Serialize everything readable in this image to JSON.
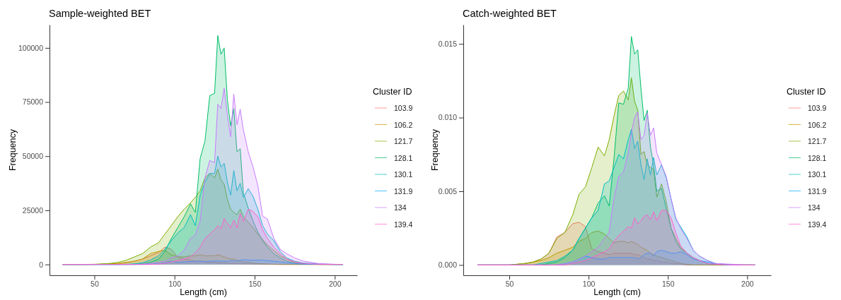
{
  "chart_data": [
    {
      "type": "area",
      "title": "Sample-weighted BET",
      "xlabel": "Length (cm)",
      "ylabel": "Frequency",
      "legend_title": "Cluster ID",
      "legend": "right",
      "grid": false,
      "x": [
        30,
        40,
        50,
        60,
        65,
        70,
        75,
        80,
        85,
        90,
        94,
        98,
        102,
        106,
        110,
        113,
        116,
        119,
        122,
        125,
        127,
        129,
        131,
        133,
        135,
        137,
        139,
        141,
        143,
        146,
        149,
        152,
        155,
        158,
        162,
        166,
        170,
        175,
        180,
        190,
        200,
        205
      ],
      "xlim": [
        22,
        214
      ],
      "xticks": [
        50,
        100,
        150,
        200
      ],
      "ylim": [
        -5000,
        110700
      ],
      "yticks": [
        0,
        25000,
        50000,
        75000,
        100000
      ],
      "series": [
        {
          "name": "103.9",
          "color": "#f8766d",
          "values": [
            0,
            0,
            0,
            200,
            400,
            800,
            1500,
            2500,
            4000,
            5500,
            8000,
            7000,
            3500,
            2500,
            2000,
            1500,
            1500,
            1200,
            1000,
            1000,
            800,
            800,
            700,
            600,
            500,
            500,
            400,
            400,
            300,
            300,
            200,
            200,
            100,
            100,
            0,
            0,
            0,
            0,
            0,
            0,
            0,
            0
          ]
        },
        {
          "name": "106.2",
          "color": "#cd9600",
          "values": [
            0,
            0,
            0,
            300,
            500,
            1000,
            1500,
            2500,
            5000,
            6000,
            6500,
            4500,
            3500,
            3500,
            4000,
            4000,
            4500,
            4000,
            4000,
            4000,
            4500,
            4000,
            3500,
            3000,
            2500,
            2500,
            2000,
            1500,
            1200,
            1000,
            600,
            400,
            300,
            200,
            100,
            0,
            0,
            0,
            0,
            0,
            0,
            0
          ]
        },
        {
          "name": "121.7",
          "color": "#7cae00",
          "values": [
            0,
            0,
            100,
            500,
            1000,
            2000,
            3500,
            5000,
            8000,
            10000,
            14000,
            18000,
            22000,
            25500,
            28500,
            31000,
            34000,
            40000,
            42000,
            40000,
            44000,
            39000,
            37000,
            30000,
            25500,
            24000,
            23000,
            25500,
            22000,
            19500,
            17000,
            14000,
            11500,
            9000,
            6500,
            4000,
            2500,
            1000,
            400,
            100,
            0,
            0
          ]
        },
        {
          "name": "128.1",
          "color": "#00be67",
          "values": [
            0,
            0,
            0,
            0,
            0,
            0,
            100,
            300,
            1000,
            2500,
            6000,
            12000,
            17000,
            22000,
            28000,
            24000,
            49000,
            57000,
            78000,
            79000,
            105700,
            97000,
            100000,
            76000,
            64000,
            72000,
            52000,
            53500,
            33000,
            26000,
            20000,
            15000,
            11000,
            8000,
            5000,
            3000,
            1500,
            600,
            200,
            0,
            0,
            0
          ]
        },
        {
          "name": "130.1",
          "color": "#00bfc4",
          "values": [
            0,
            0,
            0,
            0,
            0,
            100,
            300,
            800,
            2000,
            4000,
            7000,
            11000,
            14500,
            17000,
            23000,
            18000,
            32000,
            38000,
            42000,
            42000,
            50000,
            45000,
            46700,
            38000,
            32000,
            43400,
            34000,
            37500,
            31000,
            35000,
            31500,
            25500,
            18000,
            14000,
            11000,
            6000,
            3000,
            1500,
            700,
            200,
            0,
            0
          ]
        },
        {
          "name": "131.9",
          "color": "#00a9ff",
          "values": [
            0,
            0,
            0,
            0,
            0,
            0,
            0,
            0,
            100,
            300,
            800,
            1500,
            1000,
            1200,
            1300,
            1500,
            1500,
            1400,
            1500,
            1600,
            1600,
            1500,
            1500,
            1400,
            1800,
            1700,
            1500,
            2000,
            2200,
            2000,
            2000,
            2000,
            2000,
            1800,
            1500,
            1200,
            800,
            400,
            200,
            50,
            0,
            0
          ]
        },
        {
          "name": "134",
          "color": "#c77cff",
          "values": [
            0,
            0,
            0,
            0,
            0,
            0,
            0,
            200,
            500,
            1000,
            1500,
            3000,
            4000,
            6500,
            12000,
            13600,
            20000,
            40000,
            48000,
            47000,
            74000,
            72000,
            81400,
            69000,
            59000,
            78700,
            64600,
            71700,
            62000,
            52000,
            45000,
            36400,
            22300,
            21000,
            12000,
            7000,
            5000,
            3000,
            1600,
            400,
            100,
            0
          ]
        },
        {
          "name": "139.4",
          "color": "#ff61cc",
          "values": [
            0,
            0,
            0,
            0,
            0,
            0,
            0,
            0,
            0,
            200,
            600,
            1200,
            1800,
            2500,
            3500,
            5400,
            8000,
            12000,
            14000,
            16000,
            17900,
            16500,
            21200,
            19000,
            17000,
            20500,
            17000,
            23600,
            20000,
            25500,
            24500,
            22000,
            16000,
            12000,
            8000,
            5000,
            2500,
            1200,
            500,
            100,
            0,
            0
          ]
        }
      ]
    },
    {
      "type": "area",
      "title": "Catch-weighted BET",
      "xlabel": "Length (cm)",
      "ylabel": "Frequency",
      "legend_title": "Cluster ID",
      "legend": "right",
      "grid": false,
      "x": [
        30,
        40,
        50,
        60,
        65,
        70,
        75,
        80,
        85,
        90,
        94,
        98,
        102,
        106,
        110,
        113,
        116,
        119,
        122,
        125,
        127,
        129,
        131,
        133,
        135,
        137,
        139,
        141,
        143,
        146,
        149,
        152,
        155,
        158,
        162,
        166,
        170,
        175,
        180,
        190,
        200,
        205
      ],
      "xlim": [
        21,
        215
      ],
      "xticks": [
        50,
        100,
        150,
        200
      ],
      "ylim": [
        -0.0007,
        0.0163
      ],
      "yticks": [
        {
          "value": 0,
          "label": "0.000"
        },
        {
          "value": 0.005,
          "label": "0.005"
        },
        {
          "value": 0.01,
          "label": "0.010"
        },
        {
          "value": 0.015,
          "label": "0.015"
        }
      ],
      "series": [
        {
          "name": "103.9",
          "color": "#f8766d",
          "values": [
            0,
            0,
            0,
            0.0001,
            0.0002,
            0.0004,
            0.0008,
            0.0019,
            0.0022,
            0.0028,
            0.0029,
            0.0026,
            0.0011,
            0.0009,
            0.0008,
            0.0007,
            0.0008,
            0.0008,
            0.0008,
            0.0008,
            0.0008,
            0.0007,
            0.0007,
            0.0006,
            0.0005,
            0.0004,
            0.0004,
            0.0003,
            0.0003,
            0.0002,
            0.0002,
            0.0001,
            0.0001,
            5e-05,
            0,
            0,
            0,
            0,
            0,
            0,
            0,
            0
          ]
        },
        {
          "name": "106.2",
          "color": "#cd9600",
          "values": [
            0,
            0,
            0,
            0.0001,
            0.0002,
            0.0003,
            0.0005,
            0.0008,
            0.001,
            0.0012,
            0.0016,
            0.0018,
            0.0022,
            0.0023,
            0.0021,
            0.0018,
            0.0015,
            0.0016,
            0.0016,
            0.0015,
            0.0016,
            0.0015,
            0.0014,
            0.0012,
            0.0011,
            0.001,
            0.0008,
            0.0007,
            0.0006,
            0.0005,
            0.0004,
            0.0003,
            0.0002,
            0.0001,
            5e-05,
            0,
            0,
            0,
            0,
            0,
            0,
            0
          ]
        },
        {
          "name": "121.7",
          "color": "#7cae00",
          "values": [
            0,
            0,
            0,
            0.0001,
            0.0002,
            0.0004,
            0.0008,
            0.0018,
            0.0022,
            0.0034,
            0.0048,
            0.0053,
            0.0066,
            0.008,
            0.0074,
            0.0085,
            0.0101,
            0.0115,
            0.0118,
            0.0112,
            0.0127,
            0.0111,
            0.0105,
            0.0075,
            0.0077,
            0.0068,
            0.0066,
            0.0065,
            0.0046,
            0.0055,
            0.0043,
            0.0025,
            0.0018,
            0.0012,
            0.0008,
            0.0005,
            0.0003,
            0.0001,
            5e-05,
            0,
            0,
            0
          ]
        },
        {
          "name": "128.1",
          "color": "#00be67",
          "values": [
            0,
            0,
            0,
            0,
            0,
            0,
            0.0001,
            0.0002,
            0.0005,
            0.001,
            0.0018,
            0.0025,
            0.0032,
            0.0042,
            0.0047,
            0.004,
            0.0072,
            0.011,
            0.0109,
            0.012,
            0.0155,
            0.0143,
            0.0146,
            0.012,
            0.0098,
            0.0105,
            0.008,
            0.0068,
            0.005,
            0.0052,
            0.0038,
            0.0025,
            0.0016,
            0.0011,
            0.0008,
            0.0005,
            0.0003,
            0.0001,
            5e-05,
            0,
            0,
            0
          ]
        },
        {
          "name": "130.1",
          "color": "#00bfc4",
          "values": [
            0,
            0,
            0,
            0,
            0,
            0.0001,
            0.0002,
            0.0003,
            0.0006,
            0.001,
            0.0018,
            0.0025,
            0.0032,
            0.0037,
            0.0055,
            0.0057,
            0.0066,
            0.0075,
            0.0072,
            0.0085,
            0.0092,
            0.0079,
            0.0084,
            0.0068,
            0.0058,
            0.0072,
            0.0061,
            0.0073,
            0.0061,
            0.0068,
            0.0059,
            0.0045,
            0.0031,
            0.0026,
            0.0019,
            0.001,
            0.0006,
            0.0003,
            0.0001,
            0,
            0,
            0
          ]
        },
        {
          "name": "131.9",
          "color": "#00a9ff",
          "values": [
            0,
            0,
            0,
            0,
            0,
            0,
            0,
            0,
            0.0001,
            0.0002,
            0.0004,
            0.0006,
            0.0005,
            0.0004,
            0.0004,
            0.0005,
            0.0005,
            0.0005,
            0.0005,
            0.0005,
            0.0005,
            0.0005,
            0.0004,
            0.0005,
            0.0007,
            0.0008,
            0.0008,
            0.0006,
            0.0009,
            0.001,
            0.0009,
            0.0008,
            0.0008,
            0.0009,
            0.0007,
            0.0004,
            0.0003,
            0.0002,
            0.0001,
            0,
            0,
            0
          ]
        },
        {
          "name": "134",
          "color": "#c77cff",
          "values": [
            0,
            0,
            0,
            0,
            0,
            0,
            0,
            0,
            0.0001,
            0.0002,
            0.0004,
            0.0006,
            0.0009,
            0.0012,
            0.0018,
            0.0022,
            0.0045,
            0.006,
            0.0063,
            0.0076,
            0.009,
            0.01,
            0.0104,
            0.0085,
            0.0088,
            0.0103,
            0.0088,
            0.0093,
            0.0076,
            0.0068,
            0.006,
            0.0045,
            0.0032,
            0.0025,
            0.0018,
            0.001,
            0.0006,
            0.0003,
            0.0001,
            5e-05,
            0,
            0
          ]
        },
        {
          "name": "139.4",
          "color": "#ff61cc",
          "values": [
            0,
            0,
            0,
            0,
            0,
            0,
            0,
            0,
            0,
            0.0001,
            0.0002,
            0.0003,
            0.0005,
            0.0007,
            0.0009,
            0.0011,
            0.0016,
            0.002,
            0.0023,
            0.0026,
            0.0025,
            0.0032,
            0.0028,
            0.003,
            0.0033,
            0.0034,
            0.0031,
            0.0036,
            0.003,
            0.0037,
            0.0037,
            0.0032,
            0.0022,
            0.0013,
            0.0008,
            0.0005,
            0.0003,
            0.0001,
            5e-05,
            0,
            0,
            0
          ]
        }
      ]
    }
  ]
}
